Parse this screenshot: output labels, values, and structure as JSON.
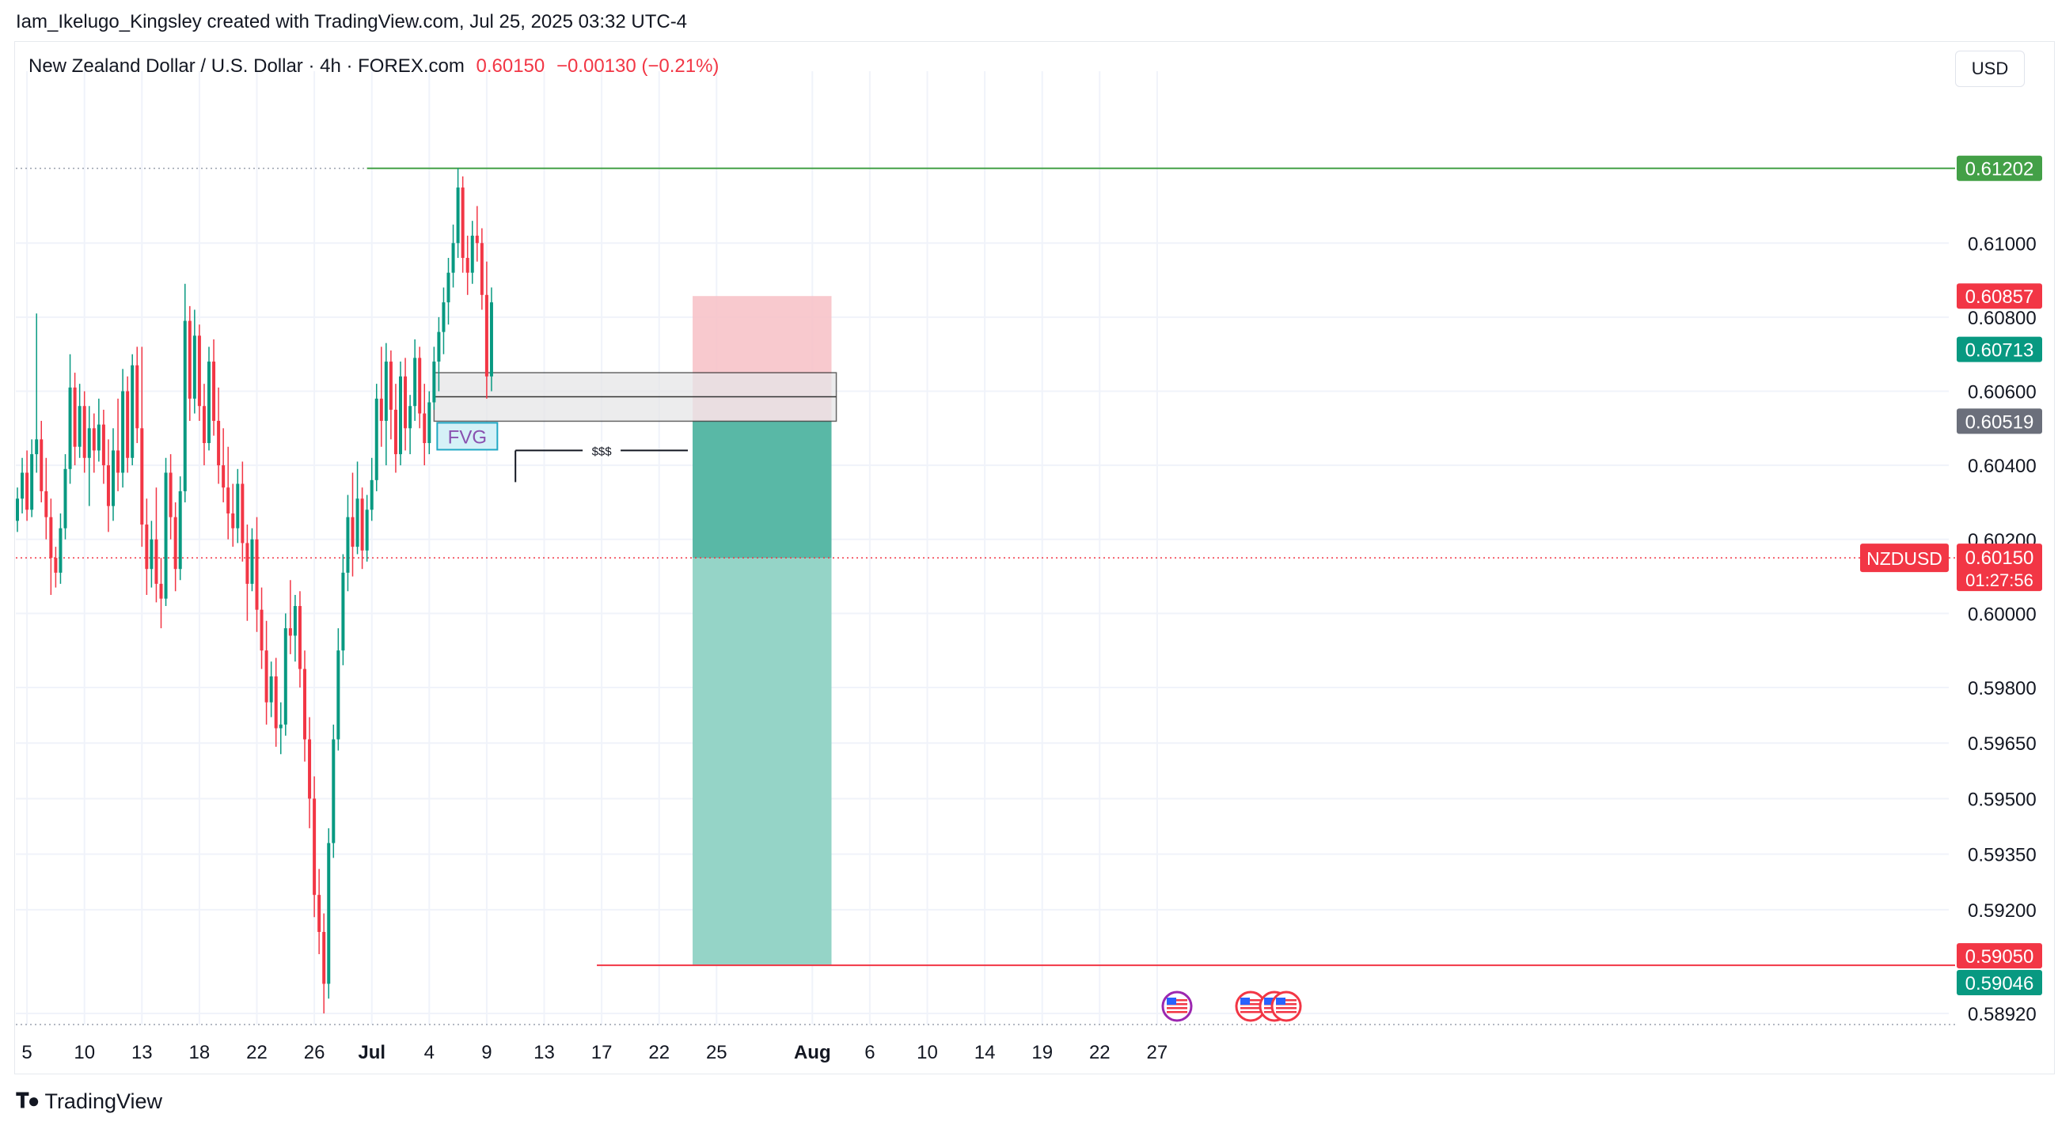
{
  "attribution": "Iam_Ikelugo_Kingsley created with TradingView.com, Jul 25, 2025 03:32 UTC-4",
  "legend": {
    "symbol_title": "New Zealand Dollar / U.S. Dollar · 4h · FOREX.com",
    "last": "0.60150",
    "change": "−0.00130 (−0.21%)"
  },
  "currency_button": "USD",
  "footer_logo": "TradingView",
  "colors": {
    "up": "#089981",
    "down": "#f23645",
    "grid": "#f0f3fa",
    "stop_zone": "#f7c0c6",
    "target_zone": "#95d4c7",
    "target_zone_dark": "#59b8a6",
    "fvg_fill": "#e6e6e8",
    "resistance_line": "#43a047"
  },
  "chart_data": {
    "type": "candlestick",
    "symbol": "NZDUSD",
    "interval": "4h",
    "y_ticks": [
      0.61,
      0.608,
      0.606,
      0.604,
      0.602,
      0.6,
      0.598,
      0.5965,
      0.595,
      0.5935,
      0.592,
      0.5892
    ],
    "ylim": [
      0.5889,
      0.614
    ],
    "x_ticks": [
      {
        "label": "5",
        "idx": 2,
        "bold": false
      },
      {
        "label": "10",
        "idx": 14,
        "bold": false
      },
      {
        "label": "13",
        "idx": 26,
        "bold": false
      },
      {
        "label": "18",
        "idx": 38,
        "bold": false
      },
      {
        "label": "22",
        "idx": 50,
        "bold": false
      },
      {
        "label": "26",
        "idx": 62,
        "bold": false
      },
      {
        "label": "Jul",
        "idx": 74,
        "bold": true
      },
      {
        "label": "4",
        "idx": 86,
        "bold": false
      },
      {
        "label": "9",
        "idx": 98,
        "bold": false
      },
      {
        "label": "13",
        "idx": 110,
        "bold": false
      },
      {
        "label": "17",
        "idx": 122,
        "bold": false
      },
      {
        "label": "22",
        "idx": 134,
        "bold": false
      },
      {
        "label": "25",
        "idx": 146,
        "bold": false
      },
      {
        "label": "Aug",
        "idx": 166,
        "bold": true
      },
      {
        "label": "6",
        "idx": 178,
        "bold": false
      },
      {
        "label": "10",
        "idx": 190,
        "bold": false
      },
      {
        "label": "14",
        "idx": 202,
        "bold": false
      },
      {
        "label": "19",
        "idx": 214,
        "bold": false
      },
      {
        "label": "22",
        "idx": 226,
        "bold": false
      },
      {
        "label": "27",
        "idx": 238,
        "bold": false
      }
    ],
    "price_badges": [
      {
        "value": "0.61202",
        "price": 0.61202,
        "style": "green"
      },
      {
        "value": "0.60857",
        "price": 0.60857,
        "style": "red"
      },
      {
        "value": "0.60713",
        "price": 0.60713,
        "style": "teal"
      },
      {
        "value": "0.60519",
        "price": 0.60519,
        "style": "gray"
      },
      {
        "value": "0.59050",
        "price": 0.5905,
        "style": "red"
      },
      {
        "value": "0.59046",
        "price": 0.59046,
        "style": "teal"
      }
    ],
    "last_price": {
      "label": "NZDUSD",
      "value": "0.60150",
      "countdown": "01:27:56",
      "price": 0.6015
    },
    "annotations": {
      "fvg_label": "FVG",
      "liquidity_label": "$$$",
      "fvg_zone": {
        "top": 0.6065,
        "mid": 0.60585,
        "bottom": 0.60519,
        "start_idx": 87,
        "end_idx": 171
      },
      "liquidity_line": {
        "price": 0.6044,
        "start_idx": 104,
        "end_idx": 140
      },
      "resistance_line": {
        "price": 0.61202,
        "start_idx": 73
      },
      "position": {
        "entry": 0.60519,
        "stop": 0.60857,
        "target": 0.5905,
        "current": 0.6015,
        "start_idx": 141,
        "end_idx": 170
      },
      "target_line": {
        "price": 0.5905,
        "start_idx": 121
      }
    },
    "candles": [
      [
        0.6025,
        0.6034,
        0.6022,
        0.6031
      ],
      [
        0.6031,
        0.6042,
        0.6027,
        0.6038
      ],
      [
        0.6038,
        0.6044,
        0.6025,
        0.6028
      ],
      [
        0.6028,
        0.6047,
        0.6026,
        0.6043
      ],
      [
        0.6043,
        0.6081,
        0.6038,
        0.6047
      ],
      [
        0.6047,
        0.6052,
        0.603,
        0.6033
      ],
      [
        0.6033,
        0.6042,
        0.602,
        0.6026
      ],
      [
        0.6026,
        0.6031,
        0.6005,
        0.6015
      ],
      [
        0.6015,
        0.6018,
        0.6007,
        0.6011
      ],
      [
        0.6011,
        0.6027,
        0.6008,
        0.6023
      ],
      [
        0.6023,
        0.6043,
        0.602,
        0.6039
      ],
      [
        0.6039,
        0.607,
        0.6035,
        0.6061
      ],
      [
        0.6061,
        0.6065,
        0.604,
        0.6045
      ],
      [
        0.6045,
        0.6062,
        0.6042,
        0.6056
      ],
      [
        0.6056,
        0.606,
        0.6038,
        0.6042
      ],
      [
        0.6042,
        0.6056,
        0.6029,
        0.605
      ],
      [
        0.605,
        0.6054,
        0.6038,
        0.6044
      ],
      [
        0.6044,
        0.6058,
        0.6041,
        0.6051
      ],
      [
        0.6051,
        0.6055,
        0.6035,
        0.604
      ],
      [
        0.604,
        0.6047,
        0.6022,
        0.6029
      ],
      [
        0.6029,
        0.605,
        0.6025,
        0.6044
      ],
      [
        0.6044,
        0.6058,
        0.6033,
        0.6038
      ],
      [
        0.6038,
        0.6066,
        0.6034,
        0.606
      ],
      [
        0.606,
        0.6064,
        0.6038,
        0.6042
      ],
      [
        0.6042,
        0.607,
        0.604,
        0.6067
      ],
      [
        0.6067,
        0.6072,
        0.6046,
        0.605
      ],
      [
        0.605,
        0.6072,
        0.6018,
        0.6024
      ],
      [
        0.6024,
        0.6031,
        0.6005,
        0.6012
      ],
      [
        0.6012,
        0.6025,
        0.6007,
        0.602
      ],
      [
        0.602,
        0.6034,
        0.6003,
        0.6008
      ],
      [
        0.6008,
        0.6015,
        0.5996,
        0.6004
      ],
      [
        0.6004,
        0.6042,
        0.6002,
        0.6038
      ],
      [
        0.6038,
        0.6043,
        0.602,
        0.6026
      ],
      [
        0.6026,
        0.603,
        0.6006,
        0.6012
      ],
      [
        0.6012,
        0.6037,
        0.6009,
        0.6033
      ],
      [
        0.6033,
        0.6089,
        0.603,
        0.6079
      ],
      [
        0.6079,
        0.6083,
        0.6052,
        0.6058
      ],
      [
        0.6058,
        0.6082,
        0.6054,
        0.6075
      ],
      [
        0.6075,
        0.6078,
        0.6052,
        0.6056
      ],
      [
        0.6056,
        0.6062,
        0.604,
        0.6046
      ],
      [
        0.6046,
        0.6072,
        0.6044,
        0.6068
      ],
      [
        0.6068,
        0.6074,
        0.6048,
        0.6052
      ],
      [
        0.6052,
        0.6061,
        0.6035,
        0.604
      ],
      [
        0.604,
        0.605,
        0.603,
        0.6034
      ],
      [
        0.6034,
        0.6045,
        0.602,
        0.6027
      ],
      [
        0.6027,
        0.6035,
        0.6018,
        0.6023
      ],
      [
        0.6023,
        0.6039,
        0.6019,
        0.6035
      ],
      [
        0.6035,
        0.6041,
        0.6014,
        0.6019
      ],
      [
        0.6019,
        0.6024,
        0.5998,
        0.6008
      ],
      [
        0.6008,
        0.6023,
        0.6006,
        0.602
      ],
      [
        0.602,
        0.6026,
        0.5995,
        0.6001
      ],
      [
        0.6001,
        0.6007,
        0.5985,
        0.599
      ],
      [
        0.599,
        0.5998,
        0.597,
        0.5976
      ],
      [
        0.5976,
        0.5987,
        0.5972,
        0.5983
      ],
      [
        0.5983,
        0.5988,
        0.5964,
        0.5969
      ],
      [
        0.5969,
        0.5976,
        0.5962,
        0.597
      ],
      [
        0.597,
        0.6,
        0.5967,
        0.5996
      ],
      [
        0.5996,
        0.6009,
        0.5989,
        0.5994
      ],
      [
        0.5994,
        0.6005,
        0.5987,
        0.6002
      ],
      [
        0.6002,
        0.6006,
        0.598,
        0.5985
      ],
      [
        0.5985,
        0.599,
        0.596,
        0.5966
      ],
      [
        0.5966,
        0.5972,
        0.5942,
        0.595
      ],
      [
        0.595,
        0.5956,
        0.5918,
        0.5924
      ],
      [
        0.5924,
        0.5931,
        0.5908,
        0.5914
      ],
      [
        0.5914,
        0.5919,
        0.5892,
        0.59
      ],
      [
        0.59,
        0.5942,
        0.5896,
        0.5938
      ],
      [
        0.5938,
        0.597,
        0.5934,
        0.5966
      ],
      [
        0.5966,
        0.5996,
        0.5963,
        0.599
      ],
      [
        0.599,
        0.6016,
        0.5986,
        0.6011
      ],
      [
        0.6011,
        0.6032,
        0.6006,
        0.6026
      ],
      [
        0.6026,
        0.6038,
        0.601,
        0.6018
      ],
      [
        0.6018,
        0.6041,
        0.6016,
        0.6031
      ],
      [
        0.6031,
        0.6034,
        0.6012,
        0.6017
      ],
      [
        0.6017,
        0.6032,
        0.6014,
        0.6028
      ],
      [
        0.6028,
        0.6042,
        0.6025,
        0.6036
      ],
      [
        0.6036,
        0.6062,
        0.6033,
        0.6058
      ],
      [
        0.6058,
        0.6072,
        0.6045,
        0.6052
      ],
      [
        0.6052,
        0.6073,
        0.604,
        0.6068
      ],
      [
        0.6068,
        0.6071,
        0.6047,
        0.6055
      ],
      [
        0.6055,
        0.6062,
        0.6038,
        0.6043
      ],
      [
        0.6043,
        0.6068,
        0.604,
        0.6064
      ],
      [
        0.6064,
        0.6069,
        0.6044,
        0.605
      ],
      [
        0.605,
        0.6059,
        0.6043,
        0.6056
      ],
      [
        0.6056,
        0.6074,
        0.6052,
        0.6069
      ],
      [
        0.6069,
        0.6072,
        0.605,
        0.6054
      ],
      [
        0.6054,
        0.6062,
        0.604,
        0.6046
      ],
      [
        0.6046,
        0.606,
        0.6043,
        0.6057
      ],
      [
        0.6057,
        0.6072,
        0.6055,
        0.6068
      ],
      [
        0.6068,
        0.608,
        0.606,
        0.6076
      ],
      [
        0.6076,
        0.6088,
        0.607,
        0.6084
      ],
      [
        0.6084,
        0.6096,
        0.6078,
        0.6092
      ],
      [
        0.6092,
        0.6105,
        0.6088,
        0.61
      ],
      [
        0.61,
        0.61202,
        0.6096,
        0.6115
      ],
      [
        0.6115,
        0.6118,
        0.6092,
        0.6096
      ],
      [
        0.6096,
        0.6102,
        0.6086,
        0.6092
      ],
      [
        0.6092,
        0.6106,
        0.6089,
        0.6102
      ],
      [
        0.6102,
        0.611,
        0.6095,
        0.61
      ],
      [
        0.61,
        0.6104,
        0.6082,
        0.6086
      ],
      [
        0.6086,
        0.6095,
        0.6058,
        0.6064
      ],
      [
        0.6064,
        0.6088,
        0.606,
        0.6084
      ]
    ]
  }
}
